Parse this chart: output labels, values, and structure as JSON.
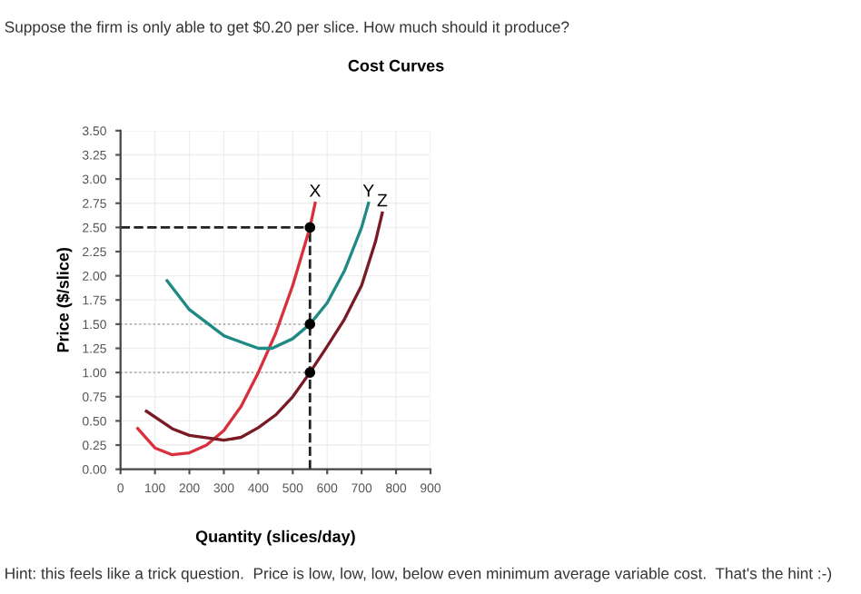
{
  "chart_data": {
    "type": "line",
    "title": "Cost Curves",
    "xlabel": "Quantity (slices/day)",
    "ylabel": "Price ($/slice)",
    "annotations": [
      "Suppose the firm is only able to get $0.20 per slice. How much should it produce?",
      "Hint: this feels like a trick question.  Price is low, low, low, below even minimum average variable cost.  That's the hint :-)"
    ],
    "series": [
      {
        "name": "X",
        "color": "#d9303e",
        "x": [
          50,
          100,
          150,
          200,
          250,
          300,
          350,
          400,
          450,
          500,
          550,
          565
        ],
        "values": [
          0.42,
          0.22,
          0.15,
          0.17,
          0.25,
          0.4,
          0.65,
          1.0,
          1.4,
          1.9,
          2.5,
          2.75
        ]
      },
      {
        "name": "Y",
        "color": "#1f8a85",
        "x": [
          135,
          200,
          300,
          400,
          440,
          500,
          550,
          600,
          650,
          700,
          720
        ],
        "values": [
          1.95,
          1.65,
          1.38,
          1.25,
          1.25,
          1.35,
          1.5,
          1.72,
          2.05,
          2.5,
          2.75
        ]
      },
      {
        "name": "Z",
        "color": "#7a1a24",
        "x": [
          75,
          150,
          200,
          300,
          350,
          400,
          450,
          500,
          550,
          600,
          650,
          700,
          740,
          760
        ],
        "values": [
          0.6,
          0.42,
          0.35,
          0.3,
          0.33,
          0.43,
          0.56,
          0.75,
          1.0,
          1.27,
          1.55,
          1.9,
          2.35,
          2.65
        ]
      },
      {
        "type": "scatter",
        "marker": "circle",
        "color": "#000000",
        "x": [
          550,
          550,
          550
        ],
        "values": [
          2.5,
          1.5,
          1.0
        ]
      }
    ],
    "ref_lines": [
      {
        "axis": "x",
        "value": 550,
        "color": "#222222",
        "line_style": "dashed"
      },
      {
        "axis": "y",
        "value": 2.5,
        "color": "#222222",
        "line_style": "dashed"
      },
      {
        "axis": "y",
        "value": 1.5,
        "color": "#aaaaaa",
        "line_style": "dotted"
      },
      {
        "axis": "y",
        "value": 1.0,
        "color": "#aaaaaa",
        "line_style": "dotted"
      }
    ],
    "xlim": [
      0,
      900
    ],
    "xticks": [
      0,
      100,
      200,
      300,
      400,
      500,
      600,
      700,
      800,
      900
    ],
    "ylim": [
      0,
      3.5
    ],
    "yticks": [
      {
        "value": 0,
        "label": "0.00"
      },
      {
        "value": 0.25,
        "label": "0.25"
      },
      {
        "value": 0.5,
        "label": "0.50"
      },
      {
        "value": 0.75,
        "label": "0.75"
      },
      {
        "value": 1.0,
        "label": "1.00"
      },
      {
        "value": 1.25,
        "label": "1.25"
      },
      {
        "value": 1.5,
        "label": "1.50"
      },
      {
        "value": 1.75,
        "label": "1.75"
      },
      {
        "value": 2.0,
        "label": "2.00"
      },
      {
        "value": 2.25,
        "label": "2.25"
      },
      {
        "value": 2.5,
        "label": "2.50"
      },
      {
        "value": 2.75,
        "label": "2.75"
      },
      {
        "value": 3.0,
        "label": "3.00"
      },
      {
        "value": 3.25,
        "label": "3.25"
      },
      {
        "value": 3.5,
        "label": "3.50"
      }
    ],
    "grid": true,
    "legend": false,
    "line_style": "solid"
  }
}
